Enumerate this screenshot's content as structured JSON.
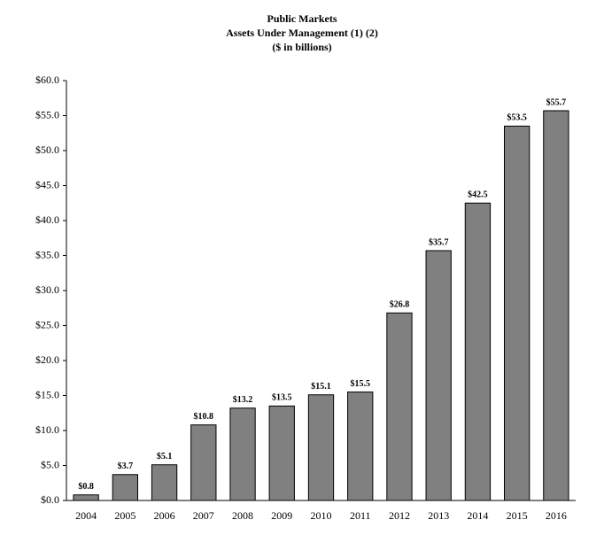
{
  "chart_data": {
    "type": "bar",
    "title_lines": [
      "Public Markets",
      "Assets Under Management (1) (2)",
      "($ in billions)"
    ],
    "categories": [
      "2004",
      "2005",
      "2006",
      "2007",
      "2008",
      "2009",
      "2010",
      "2011",
      "2012",
      "2013",
      "2014",
      "2015",
      "2016"
    ],
    "values": [
      0.8,
      3.7,
      5.1,
      10.8,
      13.2,
      13.5,
      15.1,
      15.5,
      26.8,
      35.7,
      42.5,
      53.5,
      55.7
    ],
    "value_labels": [
      "$0.8",
      "$3.7",
      "$5.1",
      "$10.8",
      "$13.2",
      "$13.5",
      "$15.1",
      "$15.5",
      "$26.8",
      "$35.7",
      "$42.5",
      "$53.5",
      "$55.7"
    ],
    "color": "#808080",
    "ylim": [
      0,
      60
    ],
    "yticks": [
      {
        "value": 0,
        "label": "$0.0"
      },
      {
        "value": 5,
        "label": "$5.0"
      },
      {
        "value": 10,
        "label": "$10.0"
      },
      {
        "value": 15,
        "label": "$15.0"
      },
      {
        "value": 20,
        "label": "$20.0"
      },
      {
        "value": 25,
        "label": "$25.0"
      },
      {
        "value": 30,
        "label": "$30.0"
      },
      {
        "value": 35,
        "label": "$35.0"
      },
      {
        "value": 40,
        "label": "$40.0"
      },
      {
        "value": 45,
        "label": "$45.0"
      },
      {
        "value": 50,
        "label": "$50.0"
      },
      {
        "value": 55,
        "label": "$55.0"
      },
      {
        "value": 60,
        "label": "$60.0"
      }
    ],
    "grid": false
  }
}
